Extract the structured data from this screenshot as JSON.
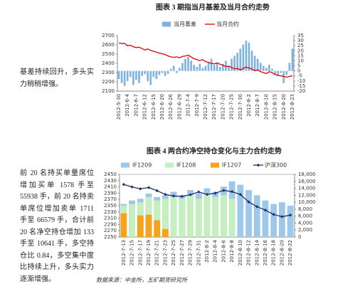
{
  "sidebar": [
    "基差持续回升，多头实力稍稍增强。",
    "前 20 名持买单量席位增加买单 1578 手至55938 手，前 20 名持卖单席位增加卖单 1711 手至 66579 手，合计前 20 名净空持仓增加 133 手至 10641 手，多空持仓比 0.84，多空集中度比持续上升，多头实力逐渐增强。"
  ],
  "source": "数据来源：中金所，五矿期货研究所",
  "chart_data": [
    {
      "type": "combo",
      "title": "图表 3  期指当月基差及当月合约走势",
      "categories": [
        "2012-5-30",
        null,
        null,
        "2012-6-4",
        null,
        null,
        "2012-6-7",
        null,
        null,
        "2012-6-12",
        null,
        null,
        "2012-6-15",
        null,
        null,
        "2012-6-20",
        null,
        null,
        "2012-6-26",
        null,
        null,
        "2012-6-29",
        null,
        null,
        "2012-7-4",
        null,
        null,
        "2012-7-9",
        null,
        null,
        "2012-7-12",
        null,
        null,
        "2012-7-17",
        null,
        null,
        "2012-7-20",
        null,
        null,
        "2012-7-25",
        null,
        null,
        "2012-7-30",
        null,
        null,
        "2012-8-2",
        null,
        null,
        "2012-8-7",
        null,
        null,
        "2012-8-10",
        null,
        null,
        "2012-8-15",
        null,
        null,
        "2012-8-20",
        null,
        null,
        "2012-8-23"
      ],
      "series": [
        {
          "name": "当月基差",
          "type": "bar",
          "axis": "y2",
          "color": "#7fb2e0",
          "values": [
            -8,
            -12,
            -15,
            -10,
            -6,
            -14,
            -9,
            -12,
            -5,
            -3,
            -10,
            -14,
            -6,
            -8,
            -4,
            -2,
            -5,
            -3,
            2,
            5,
            -2,
            3,
            8,
            12,
            14,
            10,
            6,
            4,
            7,
            3,
            5,
            9,
            12,
            6,
            8,
            4,
            7,
            10,
            5,
            12,
            15,
            18,
            22,
            26,
            30,
            28,
            20,
            15,
            12,
            8,
            5,
            3,
            6,
            2,
            -3,
            -5,
            -2,
            -12,
            -4,
            8,
            22
          ]
        },
        {
          "name": "当月合约",
          "type": "line",
          "color": "#e00000",
          "values": [
            2620,
            2615,
            2615,
            2590,
            2595,
            2580,
            2570,
            2575,
            2560,
            2545,
            2555,
            2540,
            2530,
            2520,
            2510,
            2505,
            2495,
            2480,
            2470,
            2465,
            2470,
            2460,
            2475,
            2480,
            2490,
            2470,
            2450,
            2440,
            2430,
            2440,
            2420,
            2410,
            2400,
            2395,
            2405,
            2390,
            2380,
            2365,
            2370,
            2355,
            2340,
            2345,
            2330,
            2345,
            2360,
            2350,
            2340,
            2320,
            2330,
            2310,
            2300,
            2290,
            2310,
            2300,
            2280,
            2270,
            2265,
            2260,
            2250,
            2260,
            2265
          ]
        }
      ],
      "ylim": [
        2100,
        2700
      ],
      "yticks": [
        2100,
        2200,
        2300,
        2400,
        2500,
        2600,
        2700
      ],
      "y2lim": [
        -20,
        35
      ],
      "y2ticks": [
        -20,
        -15,
        -10,
        -5,
        0,
        5,
        10,
        15,
        20,
        25,
        30,
        35
      ]
    },
    {
      "type": "combo",
      "title": "图表 4  两合约净空持仓变化与主力合约走势",
      "categories": [
        "2012-7-13",
        "2012-7-15",
        "2012-7-17",
        "2012-7-19",
        "2012-7-21",
        "2012-7-23",
        "2012-7-25",
        "2012-7-27",
        "2012-7-29",
        "2012-7-31",
        "2012-8-2",
        "2012-8-4",
        "2012-8-6",
        "2012-8-8",
        "2012-8-10",
        "2012-8-12",
        "2012-8-14",
        "2012-8-16",
        "2012-8-18",
        "2012-8-20",
        "2012-8-22"
      ],
      "series": [
        {
          "name": "IF1209",
          "type": "bar",
          "axis": "y2",
          "color": "#9dc8ea",
          "values": [
            9500,
            10500,
            11000,
            12500,
            11500,
            12000,
            13000,
            12000,
            13500,
            12500,
            14000,
            13000,
            14500,
            16000,
            15000,
            13500,
            12000,
            10500,
            9500,
            10000,
            9000
          ]
        },
        {
          "name": "IF1208",
          "type": "bar",
          "axis": "y2",
          "color": "#c6efc0",
          "values": [
            9000,
            9500,
            10000,
            11500,
            10500,
            11000,
            11500,
            11000,
            12000,
            11000,
            12500,
            11500,
            12000,
            11000,
            null,
            null,
            null,
            null,
            null,
            null,
            null
          ]
        },
        {
          "name": "IF1207",
          "type": "bar",
          "axis": "y2",
          "color": "#f7a21b",
          "values": [
            6800,
            null,
            6200,
            6400,
            4800,
            2300,
            null,
            null,
            null,
            null,
            null,
            null,
            null,
            null,
            null,
            null,
            null,
            null,
            null,
            null,
            null
          ]
        },
        {
          "name": "沪深300",
          "type": "line",
          "color": "#1f2d6b",
          "marker": true,
          "values": [
            2418,
            2410,
            2404,
            2408,
            2398,
            2386,
            2381,
            2380,
            2385,
            2394,
            2386,
            2390,
            2399,
            2395,
            2386,
            2362,
            2347,
            2336,
            2322,
            2315,
            2320
          ]
        }
      ],
      "ylim": [
        2250,
        2450
      ],
      "yticks": [
        2250,
        2270,
        2290,
        2310,
        2330,
        2350,
        2370,
        2390,
        2410,
        2430,
        2450
      ],
      "y2lim": [
        0,
        18000
      ],
      "y2ticks": [
        0,
        {
          "value": 2000,
          "label": "2,000"
        },
        {
          "value": 4000,
          "label": "4,000"
        },
        {
          "value": 6000,
          "label": "6,000"
        },
        {
          "value": 8000,
          "label": "8,000"
        },
        {
          "value": 10000,
          "label": "10,000"
        },
        {
          "value": 12000,
          "label": "12,000"
        },
        {
          "value": 14000,
          "label": "14,000"
        },
        {
          "value": 16000,
          "label": "16,000"
        },
        {
          "value": 18000,
          "label": "18,000"
        }
      ]
    }
  ]
}
